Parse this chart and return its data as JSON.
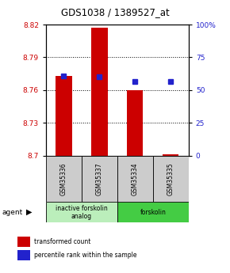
{
  "title": "GDS1038 / 1389527_at",
  "samples": [
    "GSM35336",
    "GSM35337",
    "GSM35334",
    "GSM35335"
  ],
  "red_values": [
    8.773,
    8.817,
    8.76,
    8.701
  ],
  "blue_values": [
    8.773,
    8.772,
    8.768,
    8.768
  ],
  "ylim": [
    8.7,
    8.82
  ],
  "yticks_left": [
    8.7,
    8.73,
    8.76,
    8.79,
    8.82
  ],
  "yticks_right": [
    0,
    25,
    50,
    75,
    100
  ],
  "yticks_right_labels": [
    "0",
    "25",
    "50",
    "75",
    "100%"
  ],
  "gridlines": [
    8.73,
    8.76,
    8.79
  ],
  "bar_bottom": 8.7,
  "bar_color": "#cc0000",
  "dot_color": "#2222cc",
  "groups": [
    {
      "label": "inactive forskolin\nanalog",
      "span": [
        0,
        1
      ],
      "color": "#bbeebb"
    },
    {
      "label": "forskolin",
      "span": [
        2,
        3
      ],
      "color": "#44cc44"
    }
  ],
  "agent_label": "agent",
  "legend_red": "transformed count",
  "legend_blue": "percentile rank within the sample",
  "title_color": "#000000",
  "left_tick_color": "#cc0000",
  "right_tick_color": "#2222cc",
  "bar_width": 0.45,
  "dot_size": 4
}
